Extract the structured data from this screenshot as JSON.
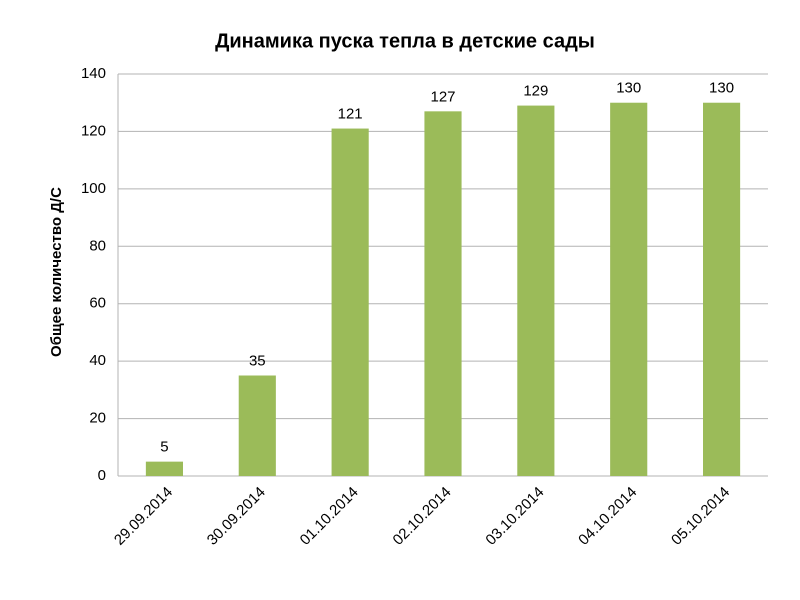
{
  "chart_data": {
    "type": "bar",
    "title": "Динамика пуска тепла в детские сады",
    "y_label": "Общее количество Д/С",
    "categories": [
      "29.09.2014",
      "30.09.2014",
      "01.10.2014",
      "02.10.2014",
      "03.10.2014",
      "04.10.2014",
      "05.10.2014"
    ],
    "values": [
      5,
      35,
      121,
      127,
      129,
      130,
      130
    ],
    "color": "#9bbb59",
    "ylim": [
      0,
      140
    ],
    "yticks": [
      0,
      20,
      40,
      60,
      80,
      100,
      120,
      140
    ],
    "grid": true
  }
}
